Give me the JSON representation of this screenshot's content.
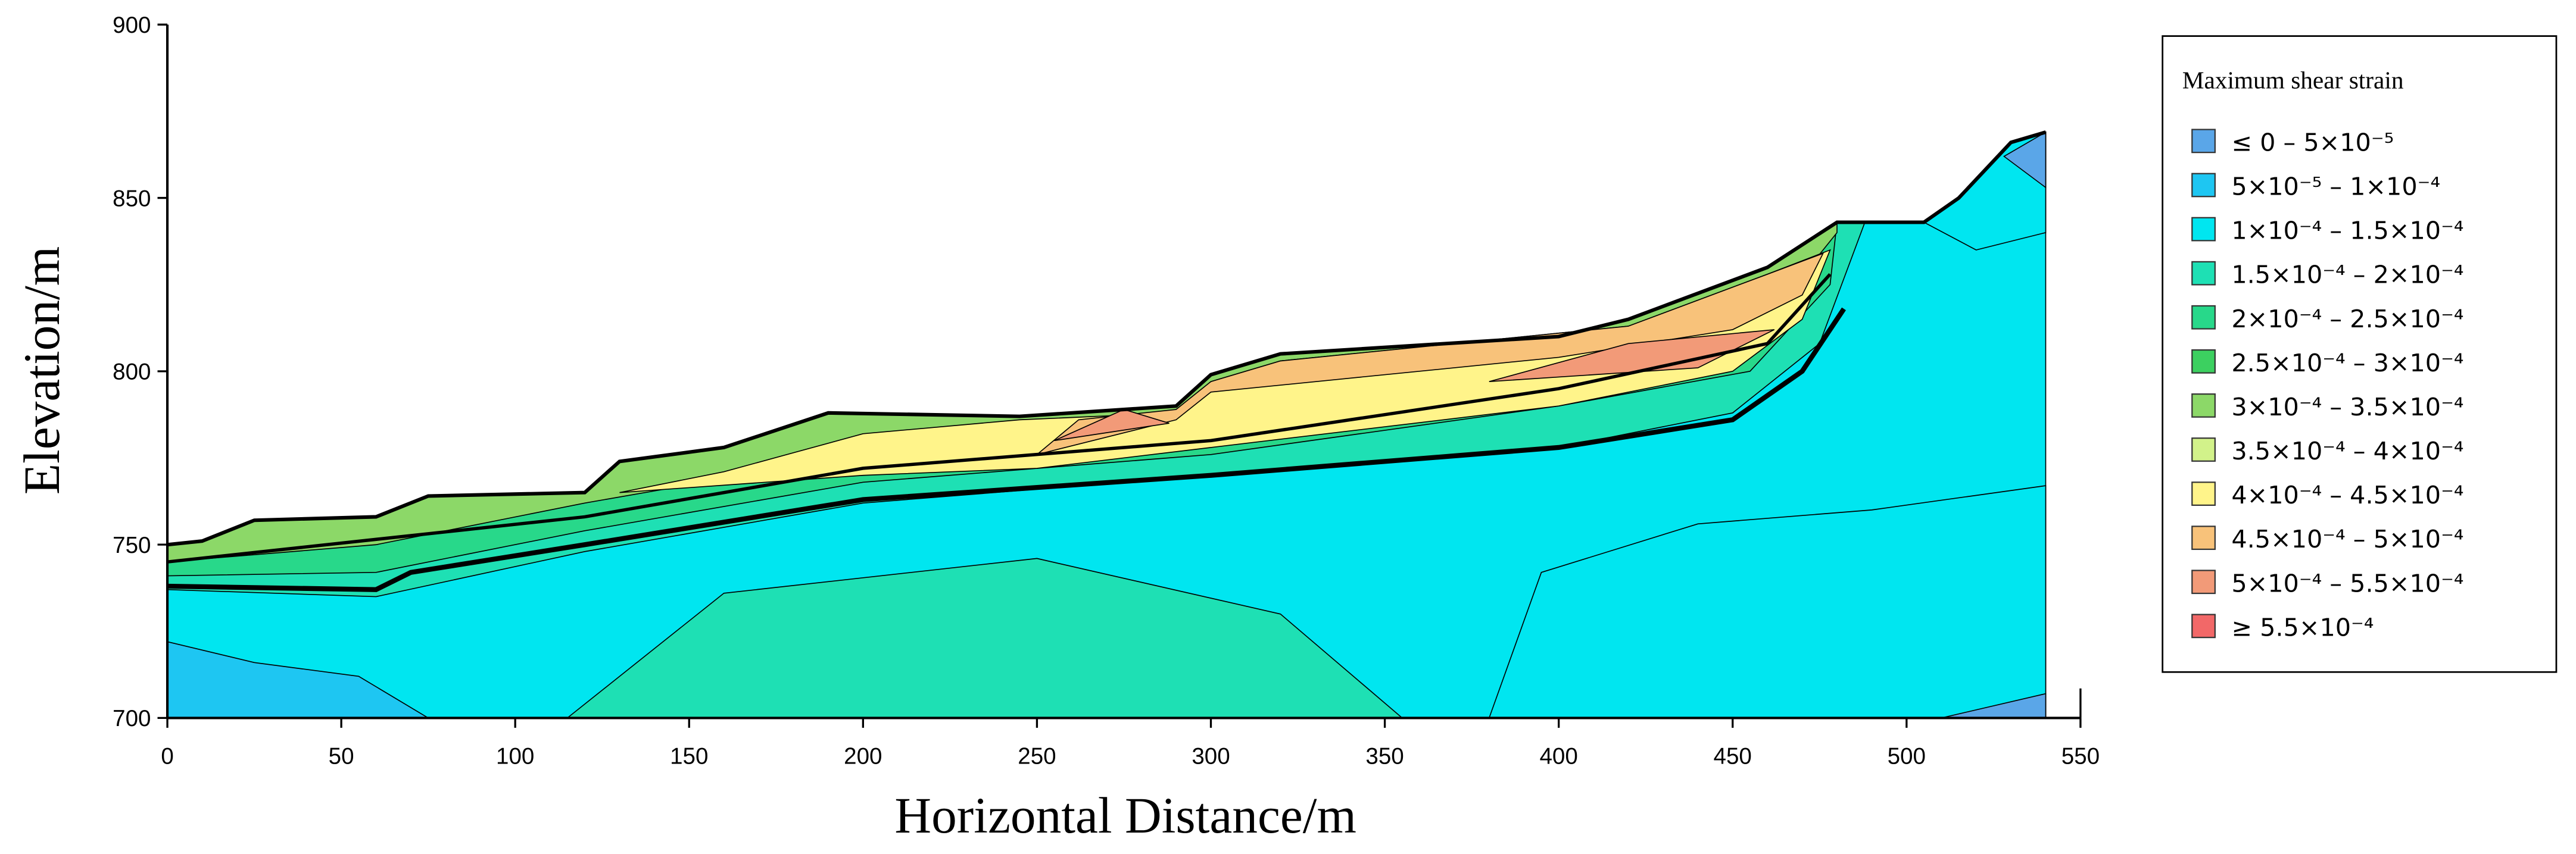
{
  "chart_data": {
    "type": "contour",
    "x_label": "Horizontal Distance/m",
    "y_label": "Elevation/m",
    "xlim": [
      0,
      550
    ],
    "ylim": [
      700,
      900
    ],
    "xticks": [
      0,
      50,
      100,
      150,
      200,
      250,
      300,
      350,
      400,
      450,
      500,
      550
    ],
    "yticks": [
      700,
      750,
      800,
      850,
      900
    ],
    "legend": {
      "title": "Maximum shear strain",
      "entries": [
        {
          "label": "≤ 0 – 5×10⁻⁵",
          "color": "#5aa6e8"
        },
        {
          "label": "5×10⁻⁵  –  1×10⁻⁴",
          "color": "#1ec6f2"
        },
        {
          "label": "1×10⁻⁴  –  1.5×10⁻⁴",
          "color": "#00e6f0"
        },
        {
          "label": "1.5×10⁻⁴ – 2×10⁻⁴",
          "color": "#1ee0b4"
        },
        {
          "label": "2×10⁻⁴  –  2.5×10⁻⁴",
          "color": "#28d88a"
        },
        {
          "label": "2.5×10⁻⁴ – 3×10⁻⁴",
          "color": "#3cd060"
        },
        {
          "label": "3×10⁻⁴  –  3.5×10⁻⁴",
          "color": "#8cd868"
        },
        {
          "label": "3.5×10⁻⁴ – 4×10⁻⁴",
          "color": "#d2f28a"
        },
        {
          "label": "4×10⁻⁴  –  4.5×10⁻⁴",
          "color": "#fff48a"
        },
        {
          "label": "4.5×10⁻⁴ – 5×10⁻⁴",
          "color": "#f8c27a"
        },
        {
          "label": "5×10⁻⁴  –  5.5×10⁻⁴",
          "color": "#f29a78"
        },
        {
          "label": "≥ 5.5×10⁻⁴",
          "color": "#f26868"
        }
      ]
    }
  }
}
